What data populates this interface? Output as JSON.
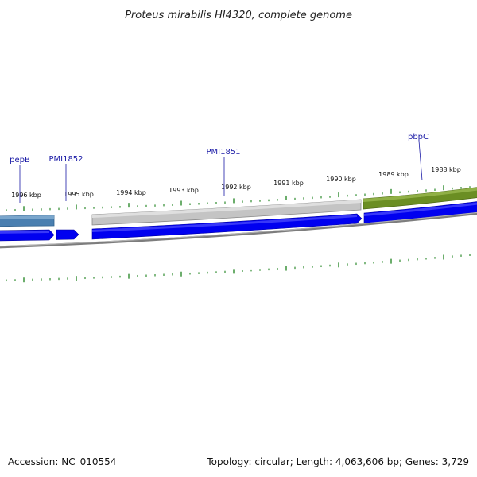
{
  "title": "Proteus mirabilis HI4320, complete genome",
  "accession": "Accession: NC_010554",
  "summary": "Topology: circular; Length: 4,063,606 bp; Genes: 3,729",
  "ticks": [
    {
      "label": "1996 kbp"
    },
    {
      "label": "1995 kbp"
    },
    {
      "label": "1994 kbp"
    },
    {
      "label": "1993 kbp"
    },
    {
      "label": "1992 kbp"
    },
    {
      "label": "1991 kbp"
    },
    {
      "label": "1990 kbp"
    },
    {
      "label": "1989 kbp"
    },
    {
      "label": "1988 kbp"
    }
  ],
  "genes": [
    {
      "name": "pepB",
      "color": "#4682b4"
    },
    {
      "name": "PMI1852",
      "color": "#0000ff"
    },
    {
      "name": "PMI1851",
      "color": "#bdbdbd"
    },
    {
      "name": "pbpC",
      "color": "#6b8e23"
    }
  ],
  "colors": {
    "cds": "#0000ff",
    "backbone": "#808080",
    "gc_skew": "#2e8b2e"
  }
}
